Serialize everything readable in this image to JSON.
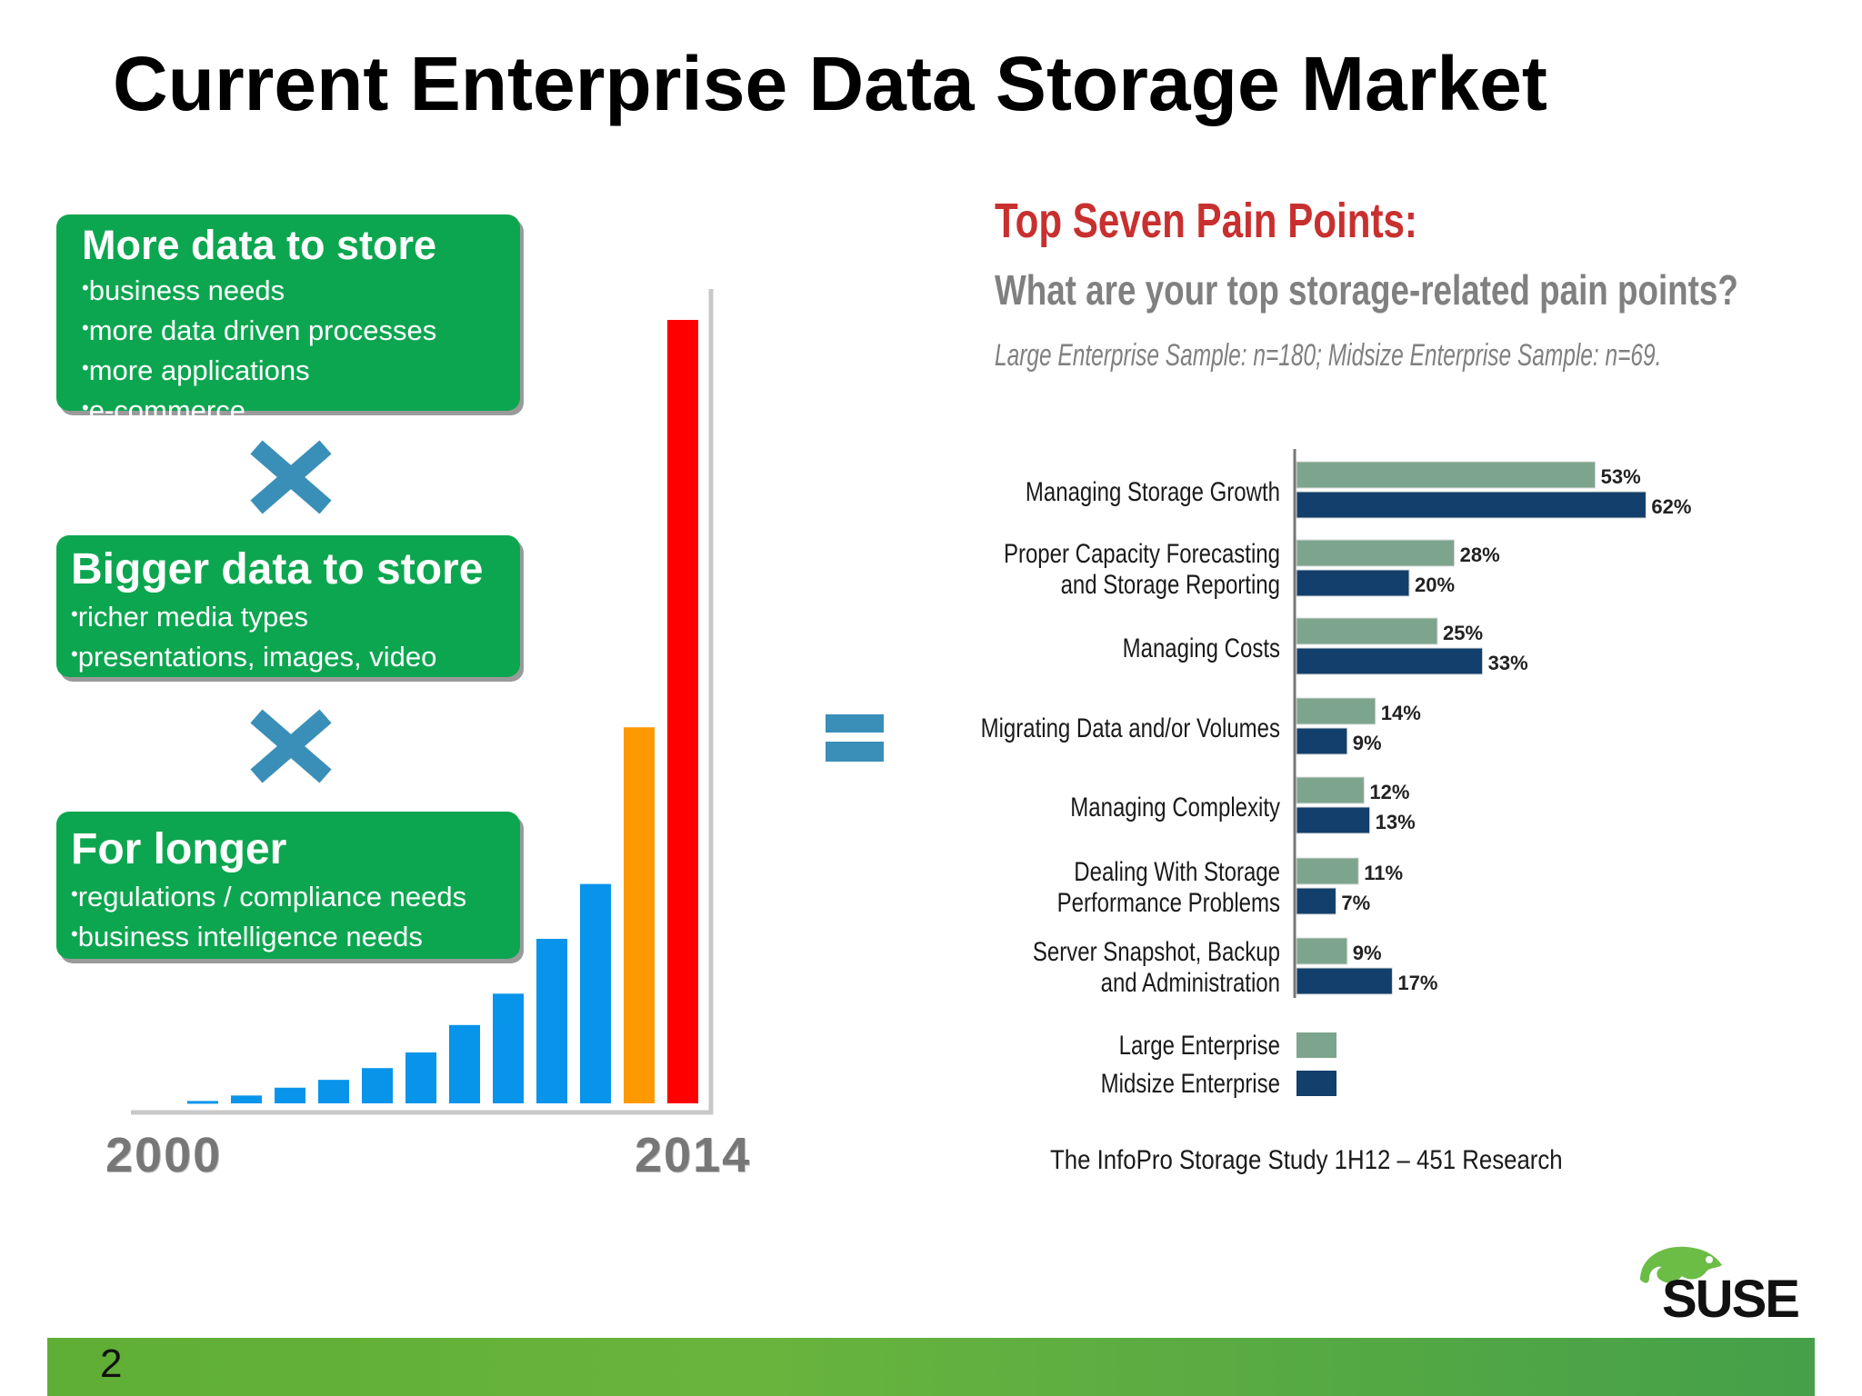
{
  "slide": {
    "title": "Current Enterprise Data Storage Market",
    "page_number": "2",
    "logo_text": "SUSE"
  },
  "drivers": [
    {
      "heading": "More data to store",
      "items": [
        "business needs",
        "more data driven processes",
        "more applications",
        "e-commerce"
      ]
    },
    {
      "heading": "Bigger data to store",
      "items": [
        "richer media types",
        "presentations, images, video"
      ]
    },
    {
      "heading": "For longer",
      "items": [
        "regulations / compliance needs",
        "business intelligence needs"
      ]
    }
  ],
  "operators": [
    "times-icon",
    "times-icon",
    "equals-icon"
  ],
  "colors": {
    "green_box": "#0da650",
    "growth_bar": "#0894ea",
    "growth_bar_penultimate": "#ff9900",
    "growth_bar_last": "#ff0000",
    "large_enterprise": "#7da58d",
    "midsize_enterprise": "#123f6b",
    "pain_title": "#c8302f",
    "footer": "#5fae35"
  },
  "chart_data": [
    {
      "type": "bar",
      "x_start_label": "2000",
      "x_end_label": "2014",
      "values": [
        0.3,
        1,
        2,
        3,
        4.5,
        6.5,
        10,
        14,
        21,
        28,
        48,
        100
      ],
      "highlight": {
        "10": "orange",
        "11": "red"
      },
      "ylim": [
        0,
        100
      ]
    },
    {
      "type": "bar",
      "orientation": "horizontal",
      "title": "Top Seven Pain Points:",
      "subtitle": "What are your top storage-related pain points?",
      "note": "Large Enterprise Sample: n=180; Midsize Enterprise Sample: n=69.",
      "categories": [
        [
          "Managing Storage Growth"
        ],
        [
          "Proper Capacity Forecasting",
          "and Storage Reporting"
        ],
        [
          "Managing Costs"
        ],
        [
          "Migrating Data and/or Volumes"
        ],
        [
          "Managing Complexity"
        ],
        [
          "Dealing With Storage",
          "Performance Problems"
        ],
        [
          "Server Snapshot, Backup",
          "and Administration"
        ]
      ],
      "series": [
        {
          "name": "Large Enterprise",
          "values": [
            53,
            28,
            25,
            14,
            12,
            11,
            9
          ]
        },
        {
          "name": "Midsize Enterprise",
          "values": [
            62,
            20,
            33,
            9,
            13,
            7,
            17
          ]
        }
      ],
      "value_suffix": "%",
      "xlim": [
        0,
        62
      ],
      "legend": "bottom-left",
      "source": "The InfoPro Storage Study 1H12 – 451 Research"
    }
  ]
}
